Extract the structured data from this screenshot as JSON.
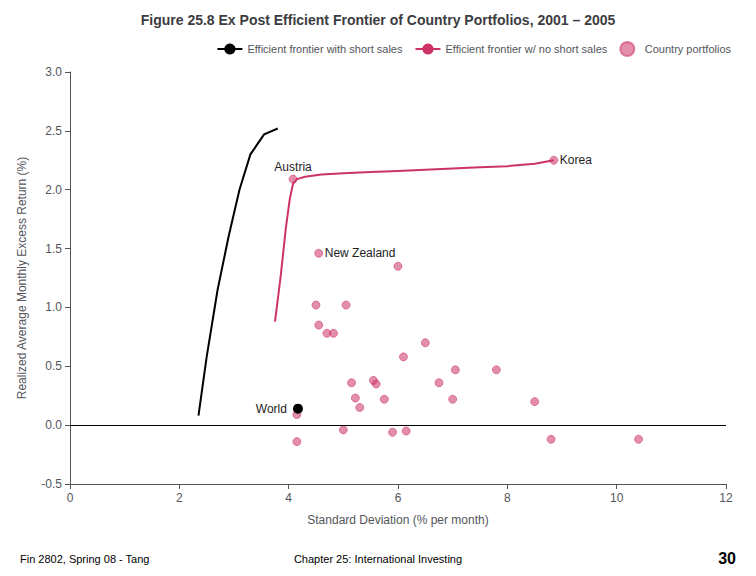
{
  "chart_data": {
    "type": "line",
    "title": "Figure 25.8 Ex Post Efficient Frontier of Country Portfolios, 2001 – 2005",
    "xlabel": "Standard Deviation (% per month)",
    "ylabel": "Realized Average Monthly Excess Return (%)",
    "xlim": [
      0,
      12
    ],
    "ylim": [
      -0.5,
      3.0
    ],
    "xticks": [
      0,
      2,
      4,
      6,
      8,
      10,
      12
    ],
    "yticks": [
      -0.5,
      {
        "value": 0.0,
        "label": "0.0"
      },
      0.5,
      {
        "value": 1.0,
        "label": "1.0"
      },
      1.5,
      {
        "value": 2.0,
        "label": "2.0"
      },
      2.5,
      {
        "value": 3.0,
        "label": "3.0"
      }
    ],
    "grid": false,
    "legend": "upper right",
    "series": [
      {
        "name": "Efficient frontier with short sales",
        "type": "line",
        "color": "black",
        "x": [
          2.35,
          2.5,
          2.7,
          2.9,
          3.1,
          3.3,
          3.55,
          3.8
        ],
        "y": [
          0.08,
          0.58,
          1.15,
          1.6,
          2.0,
          2.3,
          2.47,
          2.52
        ]
      },
      {
        "name": "Efficient frontier w/ no short sales",
        "type": "line",
        "color": "#cc3366",
        "x": [
          3.75,
          3.85,
          3.95,
          4.02,
          4.08,
          4.15,
          4.3,
          4.6,
          5.0,
          5.5,
          6.0,
          6.5,
          7.0,
          7.5,
          8.0,
          8.5,
          8.85
        ],
        "y": [
          0.88,
          1.25,
          1.68,
          1.92,
          2.05,
          2.09,
          2.11,
          2.13,
          2.14,
          2.15,
          2.16,
          2.17,
          2.18,
          2.19,
          2.2,
          2.22,
          2.25
        ]
      },
      {
        "name": "Country portfolios",
        "type": "scatter",
        "color": "#cc3366",
        "marker": "circle",
        "x": [
          4.15,
          4.5,
          4.55,
          4.7,
          4.82,
          5.05,
          5.15,
          5.22,
          5.3,
          5.55,
          5.6,
          5.75,
          6.0,
          6.1,
          6.5,
          6.75,
          7.0,
          7.05,
          7.8,
          8.5,
          8.8,
          10.4,
          4.15,
          5.0,
          5.9,
          6.15,
          4.08,
          8.85,
          4.55
        ],
        "y": [
          -0.14,
          1.02,
          0.85,
          0.78,
          0.78,
          1.02,
          0.36,
          0.23,
          0.15,
          0.38,
          0.35,
          0.22,
          1.35,
          0.58,
          0.7,
          0.36,
          0.22,
          0.47,
          0.47,
          0.2,
          -0.12,
          -0.12,
          0.09,
          -0.04,
          -0.06,
          -0.05,
          2.09,
          2.25,
          1.46
        ]
      }
    ],
    "hline": 0,
    "annotations": [
      {
        "text": "World",
        "x": 4.17,
        "y": 0.14,
        "marker": "circle",
        "color": "black"
      },
      {
        "text": "Austria",
        "x": 4.08,
        "y": 2.09
      },
      {
        "text": "Korea",
        "x": 8.85,
        "y": 2.25
      },
      {
        "text": "New Zealand",
        "x": 4.55,
        "y": 1.46
      }
    ],
    "footer": [
      "Fin 2802, Spring 08 - Tang",
      "Chapter 25: International Investing",
      "30"
    ]
  }
}
